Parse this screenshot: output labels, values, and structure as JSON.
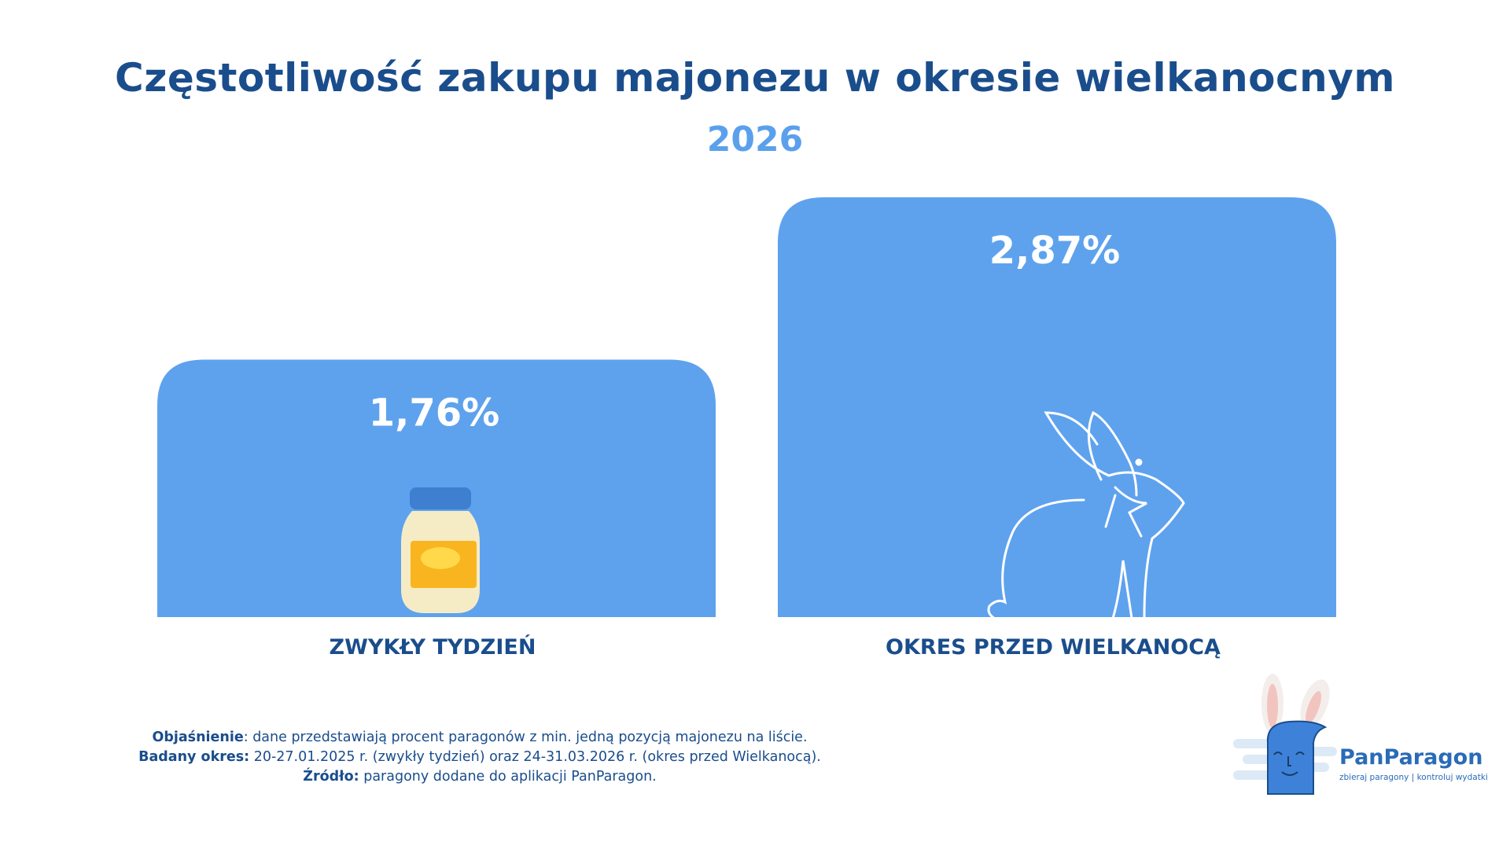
{
  "title": "Częstotliwość zakupu majonezu w okresie wielkanocnym",
  "subtitle": "2026",
  "colors": {
    "bar": "#5ea2ee",
    "title": "#1a4d8c",
    "subtitle": "#5ba0ec"
  },
  "chart_data": {
    "type": "bar",
    "categories": [
      "ZWYKŁY TYDZIEŃ",
      "OKRES PRZED WIELKANOCĄ"
    ],
    "values": [
      1.76,
      2.87
    ],
    "data_labels": [
      "1,76%",
      "2,87%"
    ],
    "unit": "%",
    "grid": false,
    "icons": [
      "mayonnaise-jar-icon",
      "bunny-icon"
    ]
  },
  "footnote": {
    "explanation_label": "Objaśnienie",
    "explanation_text": ": dane przedstawiają procent paragonów z min. jedną pozycją majonezu na liście.",
    "period_label": "Badany okres:",
    "period_text": " 20-27.01.2025 r. (zwykły tydzień) oraz 24-31.03.2026 r. (okres przed Wielkanocą).",
    "source_label": "Źródło:",
    "source_text": " paragony dodane do aplikacji PanParagon."
  },
  "logo": {
    "brand": "PanParagon",
    "tagline": "zbieraj paragony | kontroluj wydatki"
  }
}
